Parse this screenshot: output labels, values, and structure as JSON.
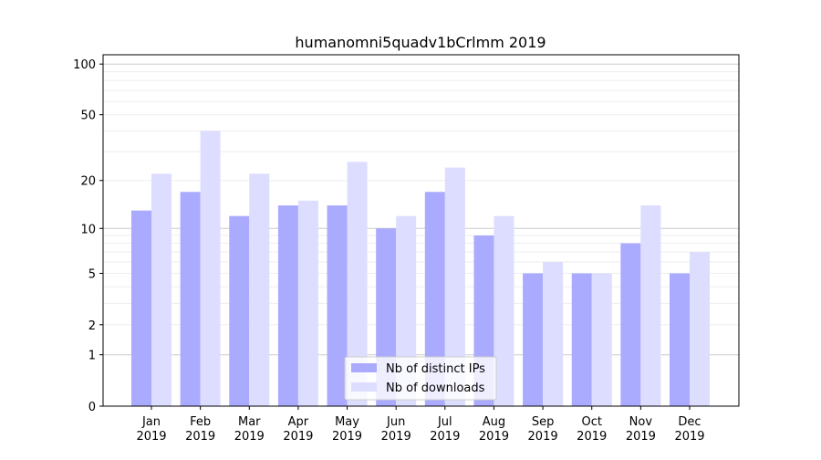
{
  "chart_data": {
    "type": "bar",
    "title": "humanomni5quadv1bCrlmm 2019",
    "xlabel": "",
    "ylabel": "",
    "yscale": "log10(1+y)",
    "ylim": [
      0,
      120
    ],
    "yticks": [
      0,
      1,
      2,
      5,
      10,
      20,
      50,
      100
    ],
    "grid": true,
    "legend_placement": "bottom-center",
    "categories": [
      "Jan\n2019",
      "Feb\n2019",
      "Mar\n2019",
      "Apr\n2019",
      "May\n2019",
      "Jun\n2019",
      "Jul\n2019",
      "Aug\n2019",
      "Sep\n2019",
      "Oct\n2019",
      "Nov\n2019",
      "Dec\n2019"
    ],
    "series": [
      {
        "name": "Nb of distinct IPs",
        "color": "#aaaaff",
        "values": [
          13,
          17,
          12,
          14,
          14,
          10,
          17,
          9,
          5,
          5,
          8,
          5
        ]
      },
      {
        "name": "Nb of downloads",
        "color": "#ddddff",
        "values": [
          22,
          40,
          22,
          15,
          26,
          12,
          24,
          12,
          6,
          5,
          14,
          7
        ]
      }
    ]
  }
}
